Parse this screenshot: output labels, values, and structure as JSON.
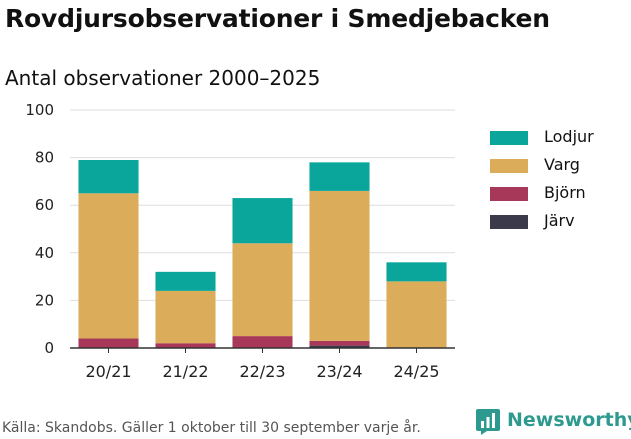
{
  "title": "Rovdjursobservationer i Smedjebacken",
  "subtitle": "Antal observationer 2000–2025",
  "source": "Källa: Skandobs. Gäller 1 oktober till 30 september varje år.",
  "brand": "Newsworthy",
  "colors": {
    "Lodjur": "#0aa69c",
    "Varg": "#dbad5b",
    "Björn": "#a8385a",
    "Järv": "#3a3a4a",
    "grid": "#dddddd",
    "axis": "#333333",
    "brand": "#2e9a8f"
  },
  "legend": [
    {
      "name": "Lodjur"
    },
    {
      "name": "Varg"
    },
    {
      "name": "Björn"
    },
    {
      "name": "Järv"
    }
  ],
  "chart_data": {
    "type": "bar",
    "stacked": true,
    "categories": [
      "20/21",
      "21/22",
      "22/23",
      "23/24",
      "24/25"
    ],
    "series": [
      {
        "name": "Järv",
        "values": [
          0,
          0,
          0,
          1,
          0
        ]
      },
      {
        "name": "Björn",
        "values": [
          4,
          2,
          5,
          2,
          0
        ]
      },
      {
        "name": "Varg",
        "values": [
          61,
          22,
          39,
          63,
          28
        ]
      },
      {
        "name": "Lodjur",
        "values": [
          14,
          8,
          19,
          12,
          8
        ]
      }
    ],
    "yticks": [
      0,
      20,
      40,
      60,
      80,
      100
    ],
    "ylim": [
      0,
      100
    ],
    "grid": true,
    "legend_position": "right",
    "xlabel": "",
    "ylabel": ""
  }
}
